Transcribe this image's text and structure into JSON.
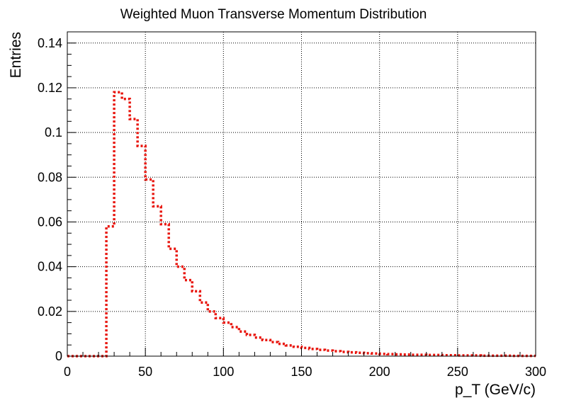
{
  "chart_data": {
    "type": "bar",
    "title": "Weighted Muon Transverse Momentum Distribution",
    "xlabel": "p_T (GeV/c)",
    "ylabel": "Entries",
    "xlim": [
      0,
      300
    ],
    "ylim": [
      0,
      0.145
    ],
    "grid": true,
    "style": "dotted step histogram",
    "bin_width": 5,
    "x_ticks": [
      0,
      50,
      100,
      150,
      200,
      250,
      300
    ],
    "x_tick_labels": [
      "0",
      "50",
      "100",
      "150",
      "200",
      "250",
      "300"
    ],
    "y_ticks": [
      0,
      0.02,
      0.04,
      0.06,
      0.08,
      0.1,
      0.12,
      0.14
    ],
    "y_tick_labels": [
      "0",
      "0.02",
      "0.04",
      "0.06",
      "0.08",
      "0.1",
      "0.12",
      "0.14"
    ],
    "series": [
      {
        "color": "#e8140c",
        "bin_edges": [
          0,
          5,
          10,
          15,
          20,
          25,
          30,
          35,
          40,
          45,
          50,
          55,
          60,
          65,
          70,
          75,
          80,
          85,
          90,
          95,
          100,
          105,
          110,
          115,
          120,
          125,
          130,
          135,
          140,
          145,
          150,
          155,
          160,
          165,
          170,
          175,
          180,
          185,
          190,
          195,
          200,
          205,
          210,
          215,
          220,
          225,
          230,
          235,
          240,
          245,
          250,
          255,
          260,
          265,
          270,
          275,
          280,
          285,
          290,
          295,
          300
        ],
        "values": [
          0,
          0,
          0,
          0,
          0,
          0.058,
          0.118,
          0.115,
          0.106,
          0.094,
          0.079,
          0.067,
          0.059,
          0.048,
          0.04,
          0.034,
          0.029,
          0.024,
          0.02,
          0.017,
          0.015,
          0.013,
          0.011,
          0.0095,
          0.0083,
          0.0072,
          0.0063,
          0.0055,
          0.0048,
          0.0042,
          0.0037,
          0.0032,
          0.0028,
          0.0025,
          0.0022,
          0.0019,
          0.0017,
          0.0015,
          0.0013,
          0.0012,
          0.001,
          0.0009,
          0.0008,
          0.0007,
          0.0006,
          0.0006,
          0.0005,
          0.0005,
          0.0004,
          0.0004,
          0.0003,
          0.0003,
          0.0003,
          0.0002,
          0.0002,
          0.0002,
          0.0002,
          0.0001,
          0.0001,
          0.0001
        ]
      }
    ]
  }
}
